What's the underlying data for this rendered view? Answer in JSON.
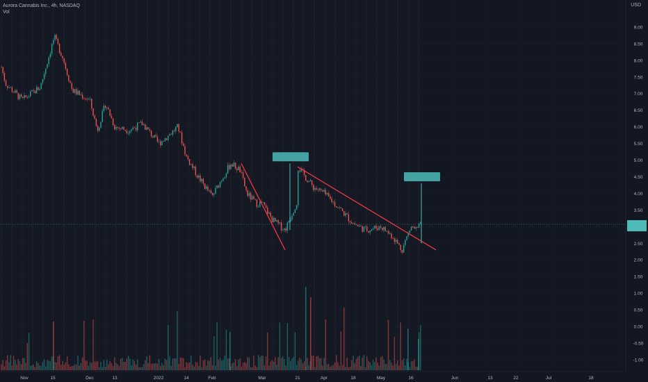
{
  "legend": {
    "symbol": "Aurora Cannabis Inc., 4h, NASDAQ",
    "volume": "Vol"
  },
  "axis_unit": "USD",
  "colors": {
    "background": "#131722",
    "up": "#26a69a",
    "down": "#ef5350",
    "trendline": "#f23645",
    "annotation": "#4ebbb9",
    "grid": "#1e2230",
    "axis_text": "#b2b5be"
  },
  "chart_data": {
    "type": "candlestick",
    "title": "",
    "y_ticks": [
      "9.00",
      "8.50",
      "8.00",
      "7.50",
      "7.00",
      "6.50",
      "6.00",
      "5.50",
      "5.00",
      "4.50",
      "4.00",
      "3.50",
      "3.00",
      "2.50",
      "2.00",
      "1.50",
      "1.00",
      "0.50",
      "0.00",
      "-0.50",
      "-1.00"
    ],
    "x_ticks": [
      "Nov",
      "15",
      "Dec",
      "13",
      "2022",
      "14",
      "Feb",
      "Mar",
      "21",
      "Apr",
      "18",
      "May",
      "16",
      "Jun",
      "13",
      "22",
      "Jul",
      "18"
    ],
    "ylim": [
      -1.0,
      9.0
    ],
    "price_path": [
      {
        "date": "Nov",
        "price": 7.8
      },
      {
        "date": "~Nov 5",
        "price": 7.3
      },
      {
        "date": "~Nov 10",
        "price": 6.8
      },
      {
        "date": "~Nov 13",
        "price": 7.2
      },
      {
        "date": "15",
        "price": 8.7
      },
      {
        "date": "~Nov 19",
        "price": 8.1
      },
      {
        "date": "~Nov 24",
        "price": 7.1
      },
      {
        "date": "Dec",
        "price": 6.8
      },
      {
        "date": "~Dec 7",
        "price": 5.9
      },
      {
        "date": "~Dec 10",
        "price": 6.7
      },
      {
        "date": "13",
        "price": 6.0
      },
      {
        "date": "~Dec 22",
        "price": 5.9
      },
      {
        "date": "~Dec 28",
        "price": 6.1
      },
      {
        "date": "2022",
        "price": 5.5
      },
      {
        "date": "~Jan 8",
        "price": 5.7
      },
      {
        "date": "~Jan 11",
        "price": 6.0
      },
      {
        "date": "14",
        "price": 5.1
      },
      {
        "date": "~Jan 20",
        "price": 4.5
      },
      {
        "date": "Feb",
        "price": 3.9
      },
      {
        "date": "~Feb 8",
        "price": 4.4
      },
      {
        "date": "~Feb 14",
        "price": 4.9
      },
      {
        "date": "~Feb 17",
        "price": 4.7
      },
      {
        "date": "~Feb 22",
        "price": 4.0
      },
      {
        "date": "~Feb 28",
        "price": 3.7
      },
      {
        "date": "Mar",
        "price": 3.7
      },
      {
        "date": "~Mar 9",
        "price": 3.2
      },
      {
        "date": "~Mar 14",
        "price": 2.9
      },
      {
        "date": "~Mar 16",
        "price": 3.8
      },
      {
        "date": "21",
        "price": 4.8
      },
      {
        "date": "~Mar 25",
        "price": 4.2
      },
      {
        "date": "Apr",
        "price": 4.0
      },
      {
        "date": "~Apr 10",
        "price": 3.6
      },
      {
        "date": "18",
        "price": 3.1
      },
      {
        "date": "~Apr 25",
        "price": 2.9
      },
      {
        "date": "May",
        "price": 3.0
      },
      {
        "date": "~May 8",
        "price": 2.7
      },
      {
        "date": "~May 12",
        "price": 2.3
      },
      {
        "date": "16",
        "price": 3.0
      },
      {
        "date": "~May 19",
        "price": 2.9
      },
      {
        "date": "~May 20",
        "price": 3.1
      }
    ],
    "current_price": 3.0,
    "trendlines": [
      {
        "from": {
          "date": "~Feb 18",
          "price": 4.9
        },
        "to": {
          "date": "~Mar 14",
          "price": 2.3
        }
      },
      {
        "from": {
          "date": "21",
          "price": 4.8
        },
        "to": {
          "date": "~May 26",
          "price": 2.3
        }
      }
    ],
    "projections": [
      {
        "from": {
          "date": "~Mar 15",
          "price": 2.9
        },
        "to": {
          "date": "~Mar 15",
          "price": 4.9
        }
      },
      {
        "from": {
          "date": "~May 20",
          "price": 2.5
        },
        "to": {
          "date": "~May 20",
          "price": 4.3
        }
      }
    ]
  }
}
